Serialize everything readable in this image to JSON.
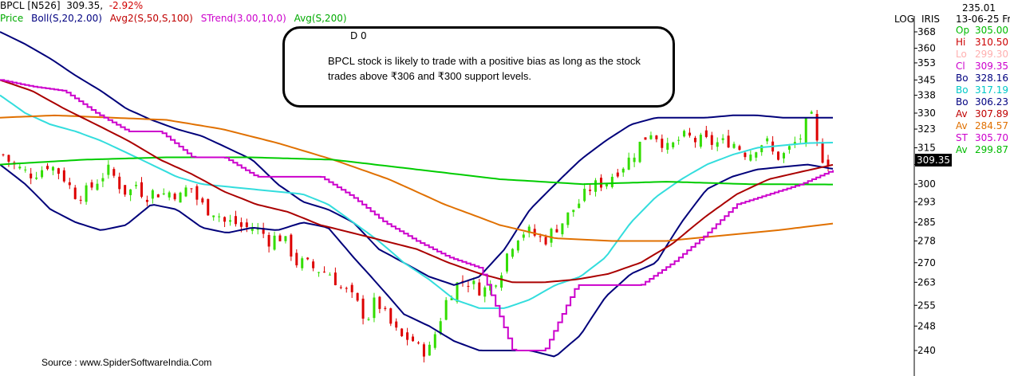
{
  "header": {
    "symbol": "BPCL [N526]",
    "price": "309.35,",
    "change": "-2.92%"
  },
  "legend": {
    "items": [
      {
        "text": "Price",
        "color": "#00aa00"
      },
      {
        "text": "Boll(S,20,2.00)",
        "color": "#000080"
      },
      {
        "text": "Avg2(S,50,S,100)",
        "color": "#c00000"
      },
      {
        "text": "STrend(3.00,10,0)",
        "color": "#cc00cc"
      },
      {
        "text": "Avg(S,200)",
        "color": "#00aa00"
      }
    ]
  },
  "scale_labels": {
    "log": "LOG",
    "iris": "IRIS"
  },
  "right_panel": {
    "top_value": "235.01",
    "date": "13-06-25 Fri",
    "rows": [
      {
        "label": "Op",
        "value": "305.00",
        "color": "#00bb00"
      },
      {
        "label": "Hi",
        "value": "310.50",
        "color": "#cc0000"
      },
      {
        "label": "Lo",
        "value": "299.30",
        "color": "#ffb0b0"
      },
      {
        "label": "Cl",
        "value": "309.35",
        "color": "#cc00cc"
      },
      {
        "label": "Bo",
        "value": "328.16",
        "color": "#000080"
      },
      {
        "label": "Bo",
        "value": "317.19",
        "color": "#00c8c8"
      },
      {
        "label": "Bo",
        "value": "306.23",
        "color": "#000080"
      },
      {
        "label": "Av",
        "value": "307.89",
        "color": "#c00000"
      },
      {
        "label": "Av",
        "value": "284.57",
        "color": "#e07000"
      },
      {
        "label": "ST",
        "value": "305.70",
        "color": "#cc00cc"
      },
      {
        "label": "Av",
        "value": "299.87",
        "color": "#00bb00"
      }
    ]
  },
  "last_price_tag": "309.35",
  "callout": {
    "marker": "D 0",
    "text": "BPCL stock is likely to trade with a positive bias as long as the stock trades above ₹306 and ₹300 support levels."
  },
  "source": "Source : www.SpiderSoftwareIndia.Com",
  "colors": {
    "up_candle": "#33dd00",
    "down_candle": "#dd0000",
    "boll_outer": "#00007a",
    "boll_mid": "#33dddd",
    "avg50": "#aa0000",
    "avg100": "#e07000",
    "supertrend": "#cc00cc",
    "avg200": "#00cc00",
    "price_tag_bg": "#000000"
  },
  "chart_data": {
    "type": "line",
    "title": "BPCL [N526]",
    "y_scale": "log",
    "ylim": [
      236,
      372
    ],
    "y_ticks": [
      240,
      248,
      255,
      263,
      270,
      278,
      285,
      293,
      300,
      308,
      315,
      323,
      330,
      338,
      345,
      353,
      360,
      368
    ],
    "y_tick_labels": [
      "240",
      "248",
      "255",
      "263",
      "270",
      "278",
      "285",
      "293",
      "300",
      "",
      "315",
      "323",
      "330",
      "338",
      "345",
      "353",
      "360",
      "368"
    ],
    "x_label": "",
    "num_periods": 150,
    "grid": false,
    "legend_position": "top-left",
    "last_close": 309.35,
    "series": [
      {
        "name": "Price",
        "style": "candles",
        "close_path": [
          [
            0,
            312
          ],
          [
            8,
            308
          ],
          [
            16,
            306
          ],
          [
            24,
            304
          ],
          [
            32,
            305
          ],
          [
            40,
            308
          ],
          [
            48,
            306
          ],
          [
            56,
            302
          ],
          [
            64,
            296
          ],
          [
            72,
            296
          ],
          [
            80,
            299
          ],
          [
            88,
            303
          ],
          [
            96,
            306
          ],
          [
            104,
            300
          ],
          [
            112,
            296
          ],
          [
            120,
            300
          ],
          [
            128,
            295
          ],
          [
            136,
            297
          ],
          [
            144,
            296
          ],
          [
            152,
            297
          ],
          [
            160,
            295
          ],
          [
            168,
            300
          ],
          [
            176,
            293
          ],
          [
            184,
            290
          ],
          [
            192,
            289
          ],
          [
            200,
            285
          ],
          [
            208,
            285
          ],
          [
            216,
            283
          ],
          [
            224,
            283
          ],
          [
            232,
            282
          ],
          [
            240,
            278
          ],
          [
            248,
            280
          ],
          [
            256,
            277
          ],
          [
            264,
            270
          ],
          [
            272,
            270
          ],
          [
            280,
            268
          ],
          [
            288,
            267
          ],
          [
            296,
            266
          ],
          [
            304,
            261
          ],
          [
            312,
            259
          ],
          [
            320,
            255
          ],
          [
            328,
            250
          ],
          [
            336,
            257
          ],
          [
            344,
            252
          ],
          [
            352,
            247
          ],
          [
            360,
            244
          ],
          [
            368,
            244
          ],
          [
            376,
            240
          ],
          [
            384,
            240
          ],
          [
            392,
            248
          ],
          [
            400,
            257
          ],
          [
            408,
            262
          ],
          [
            416,
            264
          ],
          [
            424,
            262
          ],
          [
            432,
            260
          ],
          [
            440,
            262
          ],
          [
            448,
            266
          ],
          [
            456,
            275
          ],
          [
            464,
            280
          ],
          [
            472,
            282
          ],
          [
            480,
            280
          ],
          [
            488,
            278
          ],
          [
            496,
            282
          ],
          [
            504,
            285
          ],
          [
            512,
            289
          ],
          [
            520,
            293
          ],
          [
            528,
            298
          ],
          [
            536,
            300
          ],
          [
            544,
            301
          ],
          [
            552,
            305
          ],
          [
            560,
            308
          ],
          [
            568,
            312
          ],
          [
            576,
            318
          ],
          [
            584,
            322
          ],
          [
            592,
            319
          ],
          [
            600,
            314
          ],
          [
            608,
            318
          ],
          [
            616,
            320
          ],
          [
            624,
            318
          ],
          [
            632,
            318
          ],
          [
            640,
            317
          ],
          [
            648,
            317
          ],
          [
            656,
            318
          ],
          [
            664,
            315
          ],
          [
            672,
            312
          ],
          [
            680,
            316
          ],
          [
            688,
            318
          ],
          [
            696,
            311
          ],
          [
            704,
            312
          ],
          [
            712,
            316
          ],
          [
            720,
            320
          ],
          [
            728,
            330
          ],
          [
            736,
            312
          ],
          [
            744,
            309.35
          ]
        ],
        "x_range_in_periods": "path index maps over 150 sessions"
      },
      {
        "name": "Boll upper",
        "values_path": [
          [
            0,
            368
          ],
          [
            10,
            362
          ],
          [
            20,
            355
          ],
          [
            30,
            347
          ],
          [
            40,
            340
          ],
          [
            50,
            332
          ],
          [
            60,
            327
          ],
          [
            70,
            323
          ],
          [
            80,
            320
          ],
          [
            90,
            315
          ],
          [
            100,
            310
          ],
          [
            110,
            300
          ],
          [
            120,
            293
          ],
          [
            130,
            290
          ],
          [
            140,
            285
          ],
          [
            150,
            275
          ],
          [
            160,
            270
          ],
          [
            170,
            265
          ],
          [
            180,
            262
          ],
          [
            190,
            265
          ],
          [
            200,
            275
          ],
          [
            210,
            290
          ],
          [
            220,
            300
          ],
          [
            230,
            310
          ],
          [
            240,
            318
          ],
          [
            250,
            325
          ],
          [
            260,
            328
          ],
          [
            270,
            328
          ],
          [
            280,
            328
          ],
          [
            290,
            329
          ],
          [
            300,
            329
          ],
          [
            310,
            328
          ],
          [
            320,
            328
          ],
          [
            330,
            328
          ]
        ]
      },
      {
        "name": "Boll middle",
        "values_path": [
          [
            0,
            338
          ],
          [
            10,
            330
          ],
          [
            20,
            325
          ],
          [
            30,
            322
          ],
          [
            40,
            318
          ],
          [
            50,
            313
          ],
          [
            60,
            308
          ],
          [
            70,
            303
          ],
          [
            80,
            300
          ],
          [
            90,
            299
          ],
          [
            100,
            298
          ],
          [
            110,
            297
          ],
          [
            120,
            296
          ],
          [
            130,
            292
          ],
          [
            140,
            285
          ],
          [
            150,
            278
          ],
          [
            160,
            270
          ],
          [
            170,
            264
          ],
          [
            180,
            257
          ],
          [
            190,
            254
          ],
          [
            200,
            254
          ],
          [
            210,
            257
          ],
          [
            220,
            262
          ],
          [
            230,
            265
          ],
          [
            240,
            272
          ],
          [
            250,
            285
          ],
          [
            260,
            295
          ],
          [
            270,
            302
          ],
          [
            280,
            308
          ],
          [
            290,
            312
          ],
          [
            300,
            315
          ],
          [
            310,
            316
          ],
          [
            320,
            317
          ],
          [
            330,
            317.19
          ]
        ]
      },
      {
        "name": "Boll lower",
        "values_path": [
          [
            0,
            308
          ],
          [
            10,
            300
          ],
          [
            20,
            290
          ],
          [
            30,
            285
          ],
          [
            40,
            282
          ],
          [
            50,
            284
          ],
          [
            60,
            292
          ],
          [
            70,
            290
          ],
          [
            80,
            283
          ],
          [
            90,
            281
          ],
          [
            100,
            283
          ],
          [
            110,
            282
          ],
          [
            120,
            285
          ],
          [
            130,
            283
          ],
          [
            140,
            272
          ],
          [
            150,
            262
          ],
          [
            160,
            252
          ],
          [
            170,
            248
          ],
          [
            180,
            243
          ],
          [
            190,
            240
          ],
          [
            200,
            240
          ],
          [
            210,
            240
          ],
          [
            220,
            238
          ],
          [
            230,
            245
          ],
          [
            240,
            258
          ],
          [
            250,
            266
          ],
          [
            260,
            270
          ],
          [
            270,
            285
          ],
          [
            280,
            298
          ],
          [
            290,
            303
          ],
          [
            300,
            306
          ],
          [
            310,
            307
          ],
          [
            320,
            308
          ],
          [
            330,
            306.23
          ]
        ]
      },
      {
        "name": "Avg2 50",
        "values_path": [
          [
            0,
            345
          ],
          [
            10,
            340
          ],
          [
            20,
            332
          ],
          [
            30,
            325
          ],
          [
            40,
            318
          ],
          [
            50,
            310
          ],
          [
            60,
            304
          ],
          [
            70,
            297
          ],
          [
            80,
            292
          ],
          [
            90,
            289
          ],
          [
            100,
            284
          ],
          [
            110,
            281
          ],
          [
            120,
            278
          ],
          [
            130,
            275
          ],
          [
            140,
            270
          ],
          [
            150,
            266
          ],
          [
            160,
            263
          ],
          [
            170,
            263
          ],
          [
            180,
            264
          ],
          [
            190,
            266
          ],
          [
            200,
            270
          ],
          [
            210,
            277
          ],
          [
            220,
            287
          ],
          [
            230,
            296
          ],
          [
            240,
            302
          ],
          [
            250,
            305
          ],
          [
            260,
            307.89
          ]
        ]
      },
      {
        "name": "Avg2 100",
        "values_path": [
          [
            0,
            328
          ],
          [
            20,
            329
          ],
          [
            40,
            328
          ],
          [
            60,
            327
          ],
          [
            80,
            323
          ],
          [
            100,
            317
          ],
          [
            120,
            310
          ],
          [
            140,
            302
          ],
          [
            160,
            292
          ],
          [
            180,
            284
          ],
          [
            200,
            279
          ],
          [
            220,
            278
          ],
          [
            240,
            278
          ],
          [
            260,
            280
          ],
          [
            280,
            282
          ],
          [
            300,
            284.57
          ]
        ]
      },
      {
        "name": "STrend",
        "values_path": [
          [
            0,
            345
          ],
          [
            10,
            342
          ],
          [
            20,
            340
          ],
          [
            30,
            330
          ],
          [
            40,
            322
          ],
          [
            50,
            322
          ],
          [
            60,
            311
          ],
          [
            70,
            311
          ],
          [
            80,
            303
          ],
          [
            90,
            303
          ],
          [
            100,
            303
          ],
          [
            110,
            295
          ],
          [
            120,
            285
          ],
          [
            130,
            278
          ],
          [
            140,
            272
          ],
          [
            150,
            268
          ],
          [
            160,
            240
          ],
          [
            170,
            240
          ],
          [
            180,
            262
          ],
          [
            190,
            262
          ],
          [
            200,
            262
          ],
          [
            210,
            270
          ],
          [
            220,
            280
          ],
          [
            230,
            292
          ],
          [
            240,
            296
          ],
          [
            250,
            300
          ],
          [
            260,
            305.7
          ]
        ]
      },
      {
        "name": "Avg 200",
        "values_path": [
          [
            0,
            308
          ],
          [
            30,
            310
          ],
          [
            60,
            311
          ],
          [
            90,
            311
          ],
          [
            120,
            310
          ],
          [
            150,
            306
          ],
          [
            180,
            302
          ],
          [
            210,
            300
          ],
          [
            240,
            301
          ],
          [
            270,
            300
          ],
          [
            300,
            299.87
          ]
        ]
      }
    ]
  }
}
